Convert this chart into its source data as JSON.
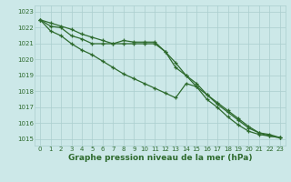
{
  "x": [
    0,
    1,
    2,
    3,
    4,
    5,
    6,
    7,
    8,
    9,
    10,
    11,
    12,
    13,
    14,
    15,
    16,
    17,
    18,
    19,
    20,
    21,
    22,
    23
  ],
  "line1": [
    1022.5,
    1022.3,
    1022.1,
    1021.9,
    1021.6,
    1021.4,
    1021.2,
    1021.0,
    1021.2,
    1021.1,
    1021.1,
    1021.1,
    1020.5,
    1019.8,
    1019.0,
    1018.3,
    1017.5,
    1017.0,
    1016.4,
    1015.9,
    1015.5,
    1015.3,
    1015.2,
    1015.1
  ],
  "line2": [
    1022.5,
    1022.1,
    1022.0,
    1021.5,
    1021.3,
    1021.0,
    1021.0,
    1021.0,
    1021.0,
    1021.0,
    1021.0,
    1021.0,
    1020.5,
    1019.5,
    1019.0,
    1018.5,
    1017.8,
    1017.2,
    1016.7,
    1016.2,
    1015.7,
    1015.4,
    1015.3,
    1015.1
  ],
  "line3": [
    1022.5,
    1021.8,
    1021.5,
    1021.0,
    1020.6,
    1020.3,
    1019.9,
    1019.5,
    1019.1,
    1018.8,
    1018.5,
    1018.2,
    1017.9,
    1017.6,
    1018.5,
    1018.3,
    1017.8,
    1017.3,
    1016.8,
    1016.3,
    1015.8,
    1015.4,
    1015.2,
    1015.1
  ],
  "ylim": [
    1014.6,
    1023.4
  ],
  "yticks": [
    1015,
    1016,
    1017,
    1018,
    1019,
    1020,
    1021,
    1022,
    1023
  ],
  "xlabel": "Graphe pression niveau de la mer (hPa)",
  "line_color": "#2d6a2d",
  "marker": "+",
  "bg_color": "#cce8e8",
  "grid_color": "#aacece",
  "label_color": "#2d6a2d",
  "tick_fontsize": 5.0,
  "xlabel_fontsize": 6.5
}
